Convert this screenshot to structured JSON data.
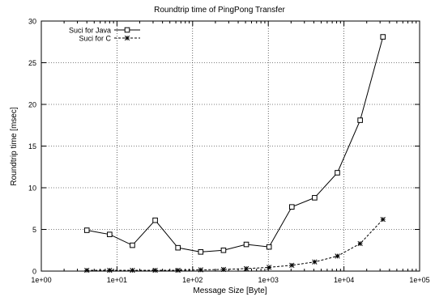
{
  "chart_data": {
    "type": "line",
    "title": "Roundtrip time of PingPong Transfer",
    "xlabel": "Message Size [Byte]",
    "ylabel": "Roundtrip time [msec]",
    "xscale": "log",
    "xlim": [
      1,
      100000
    ],
    "ylim": [
      0,
      30
    ],
    "xticks": [
      1,
      10,
      100,
      1000,
      10000,
      100000
    ],
    "xtick_labels": [
      "1e+00",
      "1e+01",
      "1e+02",
      "1e+03",
      "1e+04",
      "1e+05"
    ],
    "yticks": [
      0,
      5,
      10,
      15,
      20,
      25,
      30
    ],
    "ytick_labels": [
      "0",
      "5",
      "10",
      "15",
      "20",
      "25",
      "30"
    ],
    "grid": true,
    "legend_position": "top-left",
    "series": [
      {
        "name": "Suci for Java",
        "line_style": "solid",
        "marker": "open-square",
        "x": [
          4,
          8,
          16,
          32,
          64,
          128,
          256,
          512,
          1024,
          2048,
          4096,
          8192,
          16384,
          32768
        ],
        "y": [
          4.9,
          4.4,
          3.1,
          6.1,
          2.8,
          2.3,
          2.5,
          3.2,
          2.9,
          7.7,
          8.8,
          11.8,
          18.1,
          28.1
        ]
      },
      {
        "name": "Suci for C",
        "line_style": "dashed",
        "marker": "asterisk",
        "x": [
          4,
          8,
          16,
          32,
          64,
          128,
          256,
          512,
          1024,
          2048,
          4096,
          8192,
          16384,
          32768
        ],
        "y": [
          0.1,
          0.1,
          0.1,
          0.1,
          0.1,
          0.15,
          0.2,
          0.3,
          0.45,
          0.7,
          1.1,
          1.8,
          3.3,
          6.2
        ]
      }
    ]
  }
}
